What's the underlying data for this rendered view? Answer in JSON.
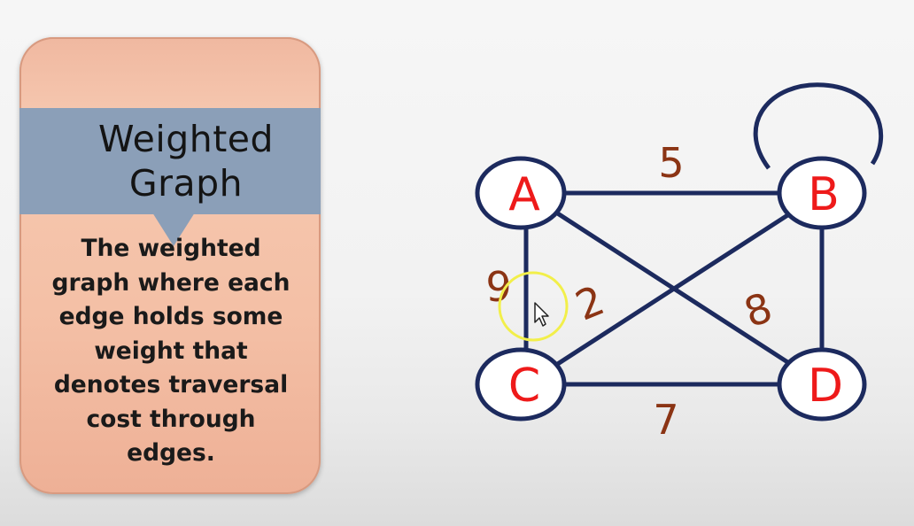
{
  "card": {
    "title_line1": "Weighted",
    "title_line2": "Graph",
    "description_lines": [
      "The weighted",
      "graph where each",
      "edge holds some",
      "weight that",
      "denotes traversal",
      "cost through",
      "edges."
    ]
  },
  "graph": {
    "nodes": [
      {
        "id": "A",
        "label": "A"
      },
      {
        "id": "B",
        "label": "B"
      },
      {
        "id": "C",
        "label": "C"
      },
      {
        "id": "D",
        "label": "D"
      }
    ],
    "edges": [
      {
        "from": "A",
        "to": "B",
        "weight": "5"
      },
      {
        "from": "A",
        "to": "C",
        "weight": "9"
      },
      {
        "from": "B",
        "to": "C",
        "weight": "2"
      },
      {
        "from": "A",
        "to": "D",
        "weight": "8"
      },
      {
        "from": "C",
        "to": "D",
        "weight": "7"
      },
      {
        "from": "B",
        "to": "D",
        "weight": ""
      },
      {
        "from": "B",
        "to": "B",
        "weight": ""
      }
    ]
  },
  "colors": {
    "node_outline": "#1c2a5e",
    "edge": "#1c2a5e",
    "node_label": "#ee1a1a",
    "weight_label": "#8b3414",
    "cursor_highlight": "#f2ef4a"
  }
}
